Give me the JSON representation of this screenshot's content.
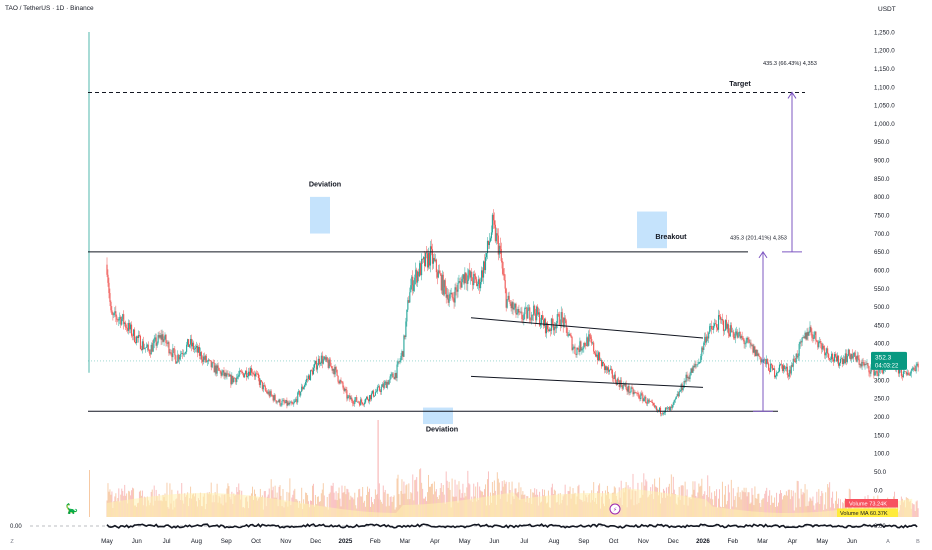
{
  "header": {
    "symbol_line": "TAO / TetherUS · 1D · Binance",
    "currency": "USDT"
  },
  "colors": {
    "up": "#26a69a",
    "down": "#ef5350",
    "line": "#131722",
    "highlight": "#bbdefb",
    "arrow": "#7e57c2",
    "price_badge": "#089981",
    "vol_badge": "#f7525f",
    "vma_badge": "#ffeb3b",
    "vol_up": "#f6c9a3",
    "vol_down": "#f8b9b9",
    "vma_fill": "#fff2b3"
  },
  "chart_data": {
    "type": "candlestick",
    "y_axis": {
      "min": 0,
      "max": 1250,
      "step": 50,
      "ticks": [
        "1,250.0",
        "1,200.0",
        "1,150.0",
        "1,100.0",
        "1,050.0",
        "1,000.0",
        "950.0",
        "900.0",
        "850.0",
        "800.0",
        "750.0",
        "700.0",
        "650.0",
        "600.0",
        "550.0",
        "500.0",
        "450.0",
        "400.0",
        "350.0",
        "300.0",
        "250.0",
        "200.0",
        "150.0",
        "100.0",
        "50.0",
        "0.0"
      ]
    },
    "x_axis": {
      "labels": [
        "May",
        "Jun",
        "Jul",
        "Aug",
        "Sep",
        "Oct",
        "Nov",
        "Dec",
        "2025",
        "Feb",
        "Mar",
        "Apr",
        "May",
        "Jun",
        "Jul",
        "Aug",
        "Sep",
        "Oct",
        "Nov",
        "Dec",
        "2026",
        "Feb",
        "Mar",
        "Apr",
        "May",
        "Jun"
      ]
    },
    "price_path": [
      [
        0,
        615
      ],
      [
        0.6,
        470
      ],
      [
        2,
        470
      ],
      [
        4,
        420
      ],
      [
        6,
        380
      ],
      [
        8,
        420
      ],
      [
        10,
        360
      ],
      [
        12,
        400
      ],
      [
        15,
        340
      ],
      [
        18,
        300
      ],
      [
        21,
        330
      ],
      [
        23,
        270
      ],
      [
        25,
        240
      ],
      [
        27,
        230
      ],
      [
        29,
        300
      ],
      [
        31,
        360
      ],
      [
        33,
        330
      ],
      [
        35,
        250
      ],
      [
        37,
        240
      ],
      [
        40,
        280
      ],
      [
        42,
        320
      ],
      [
        43,
        380
      ],
      [
        44,
        550
      ],
      [
        45,
        590
      ],
      [
        47,
        640
      ],
      [
        49,
        550
      ],
      [
        50,
        520
      ],
      [
        52,
        590
      ],
      [
        54,
        560
      ],
      [
        55,
        630
      ],
      [
        56,
        720
      ],
      [
        57,
        660
      ],
      [
        58,
        520
      ],
      [
        60,
        470
      ],
      [
        62,
        490
      ],
      [
        64,
        440
      ],
      [
        66,
        470
      ],
      [
        68,
        380
      ],
      [
        70,
        410
      ],
      [
        72,
        340
      ],
      [
        74,
        300
      ],
      [
        76,
        270
      ],
      [
        78,
        250
      ],
      [
        80,
        215
      ],
      [
        82,
        220
      ],
      [
        84,
        300
      ],
      [
        86,
        350
      ],
      [
        87,
        420
      ],
      [
        89,
        460
      ],
      [
        91,
        430
      ],
      [
        93,
        400
      ],
      [
        95,
        360
      ],
      [
        97,
        320
      ],
      [
        98,
        340
      ],
      [
        99,
        320
      ],
      [
        101,
        400
      ],
      [
        102,
        440
      ],
      [
        104,
        390
      ],
      [
        106,
        350
      ],
      [
        108,
        370
      ],
      [
        110,
        340
      ],
      [
        112,
        320
      ],
      [
        114,
        350
      ],
      [
        115,
        330
      ],
      [
        116,
        310
      ],
      [
        118,
        350
      ]
    ],
    "price_seed": 7,
    "volume_seed": 13,
    "current_price": "352.3",
    "countdown": "04:03:22",
    "annotations": {
      "deviation_top": "Deviation",
      "deviation_bottom": "Deviation",
      "breakout": "Breakout",
      "target": "Target",
      "target_measure": "435.3 (66.43%) 4,353",
      "breakout_measure": "435.3 (201.41%) 4,353"
    },
    "levels": {
      "target": 1085,
      "range_high": 650,
      "range_low": 215
    },
    "channel": {
      "upper_start": 470,
      "upper_end": 415,
      "lower_start": 310,
      "lower_end": 280
    },
    "volume": {
      "label": "Volume",
      "value": "73.24K",
      "ma_label": "Volume MA",
      "ma_value": "60.37K"
    },
    "oscillator": {
      "left_value": "0.00",
      "right_value": "0.00",
      "axis_top": "0.0",
      "axis_bottom": "0.00"
    }
  }
}
